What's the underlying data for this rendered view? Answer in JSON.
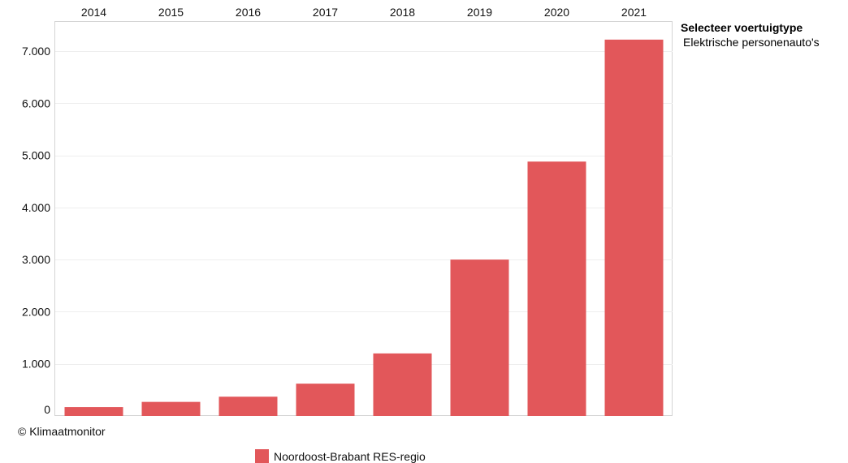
{
  "chart_data": {
    "type": "bar",
    "categories": [
      "2014",
      "2015",
      "2016",
      "2017",
      "2018",
      "2019",
      "2020",
      "2021"
    ],
    "series": [
      {
        "name": "Noordoost-Brabant RES-regio",
        "values": [
          170,
          270,
          370,
          620,
          1200,
          3000,
          4880,
          7220
        ],
        "color": "#e2575a"
      }
    ],
    "yticks": [
      0,
      1000,
      2000,
      3000,
      4000,
      5000,
      6000,
      7000
    ],
    "ytick_labels": [
      "0",
      "1.000",
      "2.000",
      "3.000",
      "4.000",
      "5.000",
      "6.000",
      "7.000"
    ],
    "ylim": [
      0,
      7560
    ],
    "xaxis_position": "top",
    "grid": true,
    "legend_position": "bottom"
  },
  "filter": {
    "title": "Selecteer voertuigtype",
    "value": "Elektrische personenauto's"
  },
  "copyright": "© Klimaatmonitor",
  "colors": {
    "bar": "#e2575a",
    "grid": "#eeeeee",
    "frame": "#d4d4d4"
  }
}
